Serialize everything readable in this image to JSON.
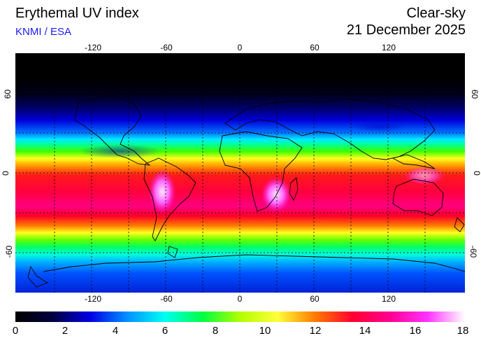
{
  "header": {
    "title": "Erythemal UV index",
    "credit": "KNMI / ESA",
    "product": "Clear-sky",
    "date": "21 December 2025"
  },
  "map": {
    "lon_range": [
      -180,
      180
    ],
    "lat_range": [
      -90,
      90
    ],
    "lon_ticks": [
      "-120",
      "-60",
      "0",
      "60",
      "120"
    ],
    "lat_ticks": [
      "60",
      "0",
      "-60"
    ],
    "grid": true,
    "grid_style": "dotted",
    "variable": "clear-sky erythemal UV index"
  },
  "colorbar": {
    "min": 0,
    "max": 18,
    "labels": [
      "0",
      "2",
      "4",
      "6",
      "8",
      "10",
      "12",
      "14",
      "16",
      "18"
    ],
    "colors": [
      "#000000",
      "#00003f",
      "#0000e6",
      "#0093ff",
      "#00fff2",
      "#00ff40",
      "#b3ff00",
      "#ffff3a",
      "#ff7a00",
      "#ff0030",
      "#ff0090",
      "#ff33ff",
      "#ffffff"
    ]
  }
}
